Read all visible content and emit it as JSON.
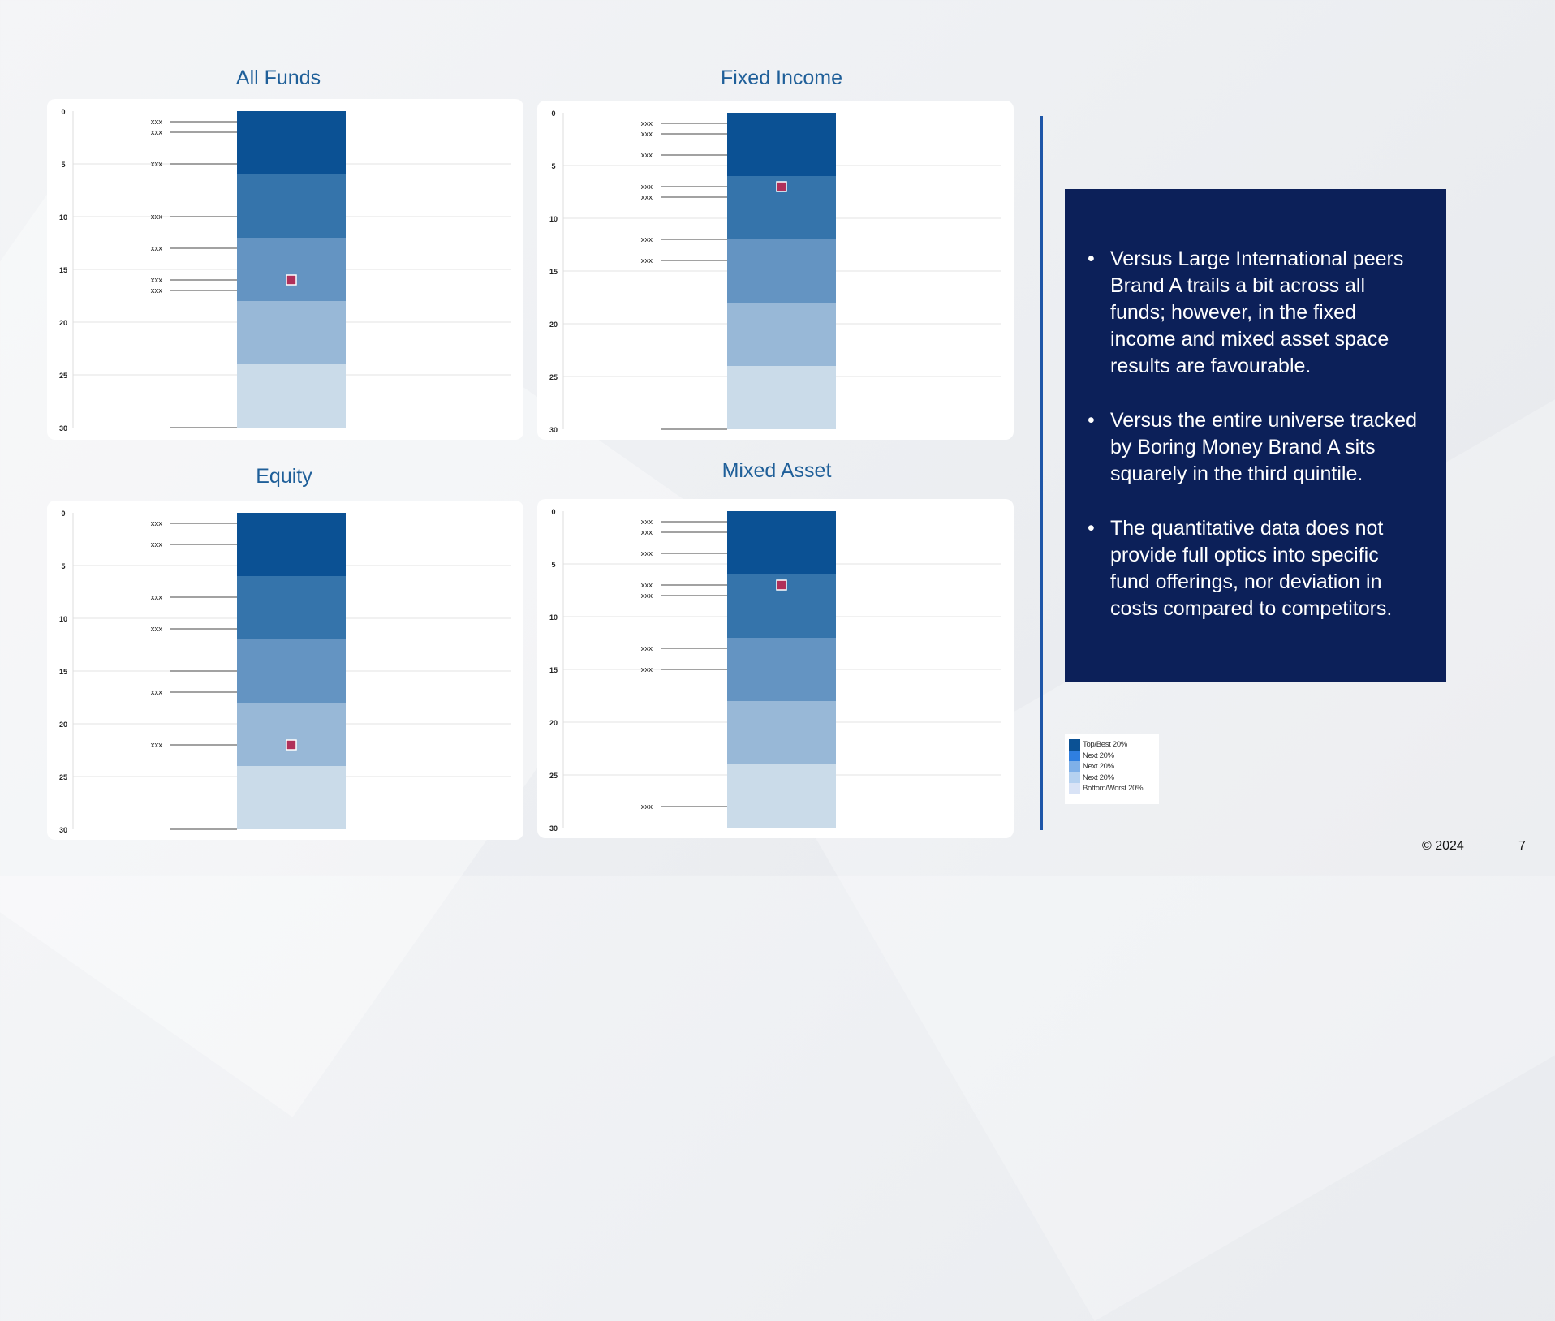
{
  "colors": {
    "accent": "#1f5f99",
    "textbox_bg": "#0c2059",
    "marker": "#b0305a",
    "quintiles": [
      "#0b5194",
      "#3574ab",
      "#6494c2",
      "#98b8d7",
      "#cadbe9"
    ]
  },
  "chart_data": [
    {
      "type": "bar",
      "title": "All Funds",
      "ylim": [
        0,
        30
      ],
      "y_ticks": [
        0,
        5,
        10,
        15,
        20,
        25,
        30
      ],
      "y_inverted": true,
      "quintile_bands": [
        [
          0,
          6
        ],
        [
          6,
          12
        ],
        [
          12,
          18
        ],
        [
          18,
          24
        ],
        [
          24,
          30
        ]
      ],
      "peers": [
        {
          "label": "xxx",
          "rank": 1
        },
        {
          "label": "xxx",
          "rank": 2
        },
        {
          "label": "xxx",
          "rank": 5
        },
        {
          "label": "xxx",
          "rank": 10
        },
        {
          "label": "xxx",
          "rank": 13
        },
        {
          "label": "xxx",
          "rank": 16
        },
        {
          "label": "xxx",
          "rank": 17
        }
      ],
      "extra_lines": [
        30
      ],
      "brand_rank": 16
    },
    {
      "type": "bar",
      "title": "Fixed Income",
      "ylim": [
        0,
        30
      ],
      "y_ticks": [
        0,
        5,
        10,
        15,
        20,
        25,
        30
      ],
      "y_inverted": true,
      "quintile_bands": [
        [
          0,
          6
        ],
        [
          6,
          12
        ],
        [
          12,
          18
        ],
        [
          18,
          24
        ],
        [
          24,
          30
        ]
      ],
      "peers": [
        {
          "label": "xxx",
          "rank": 1
        },
        {
          "label": "xxx",
          "rank": 2
        },
        {
          "label": "xxx",
          "rank": 4
        },
        {
          "label": "xxx",
          "rank": 7
        },
        {
          "label": "xxx",
          "rank": 8
        },
        {
          "label": "xxx",
          "rank": 12
        },
        {
          "label": "xxx",
          "rank": 14
        }
      ],
      "extra_lines": [
        30
      ],
      "brand_rank": 7
    },
    {
      "type": "bar",
      "title": "Equity",
      "ylim": [
        0,
        30
      ],
      "y_ticks": [
        0,
        5,
        10,
        15,
        20,
        25,
        30
      ],
      "y_inverted": true,
      "quintile_bands": [
        [
          0,
          6
        ],
        [
          6,
          12
        ],
        [
          12,
          18
        ],
        [
          18,
          24
        ],
        [
          24,
          30
        ]
      ],
      "peers": [
        {
          "label": "xxx",
          "rank": 1
        },
        {
          "label": "xxx",
          "rank": 3
        },
        {
          "label": "xxx",
          "rank": 8
        },
        {
          "label": "xxx",
          "rank": 11
        },
        {
          "label": "xxx",
          "rank": 17
        },
        {
          "label": "xxx",
          "rank": 22
        }
      ],
      "extra_lines": [
        15,
        30
      ],
      "brand_rank": 22
    },
    {
      "type": "bar",
      "title": "Mixed Asset",
      "ylim": [
        0,
        30
      ],
      "y_ticks": [
        0,
        5,
        10,
        15,
        20,
        25,
        30
      ],
      "y_inverted": true,
      "quintile_bands": [
        [
          0,
          6
        ],
        [
          6,
          12
        ],
        [
          12,
          18
        ],
        [
          18,
          24
        ],
        [
          24,
          30
        ]
      ],
      "peers": [
        {
          "label": "xxx",
          "rank": 1
        },
        {
          "label": "xxx",
          "rank": 2
        },
        {
          "label": "xxx",
          "rank": 4
        },
        {
          "label": "xxx",
          "rank": 7
        },
        {
          "label": "xxx",
          "rank": 8
        },
        {
          "label": "xxx",
          "rank": 13
        },
        {
          "label": "xxx",
          "rank": 15
        },
        {
          "label": "xxx",
          "rank": 28
        }
      ],
      "extra_lines": [],
      "brand_rank": 7
    }
  ],
  "commentary": {
    "bullet_symbol": "•",
    "bullets": [
      "Versus Large International peers Brand A trails a bit across all funds; however, in the fixed income and mixed asset space results are favourable.",
      "Versus the entire universe tracked by Boring Money Brand A sits squarely in the third quintile.",
      "The quantitative data does not provide full optics into specific fund offerings, nor deviation in costs compared to competitors."
    ]
  },
  "legend": {
    "items": [
      {
        "label": "Top/Best 20%",
        "color": "#0b5194"
      },
      {
        "label": "Next 20%",
        "color": "#2f7fe0"
      },
      {
        "label": "Next 20%",
        "color": "#7fb0e8"
      },
      {
        "label": "Next 20%",
        "color": "#b5d1f0"
      },
      {
        "label": "Bottom/Worst 20%",
        "color": "#d9e3f6"
      }
    ]
  },
  "footer": {
    "copyright": "© 2024",
    "page_number": "7"
  }
}
